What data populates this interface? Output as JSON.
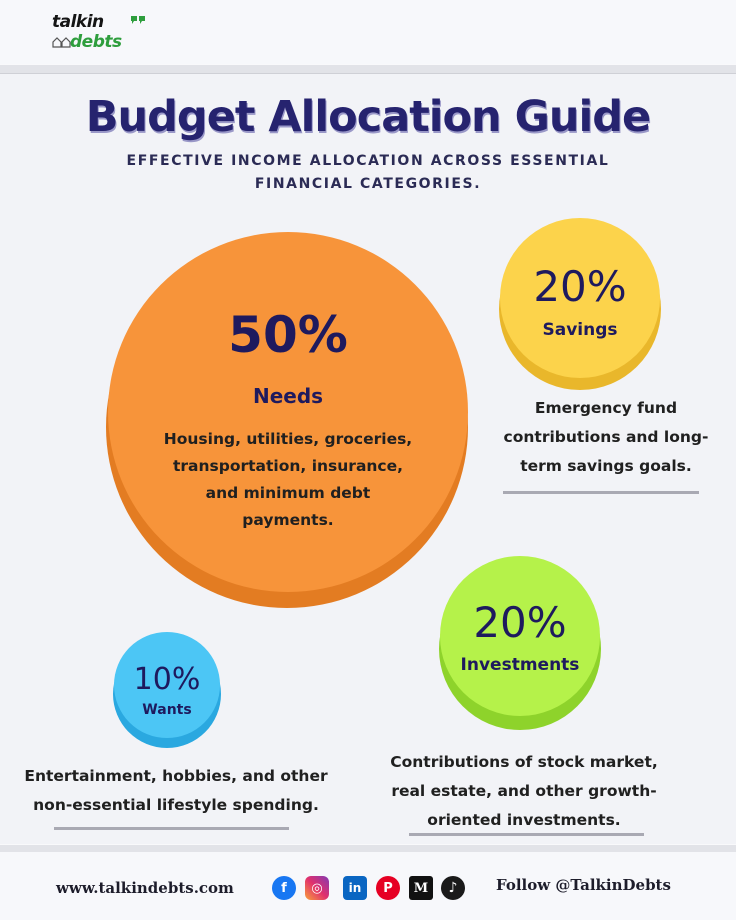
{
  "brand": {
    "line1": "talkin",
    "line2": "debts"
  },
  "title": "Budget Allocation Guide",
  "subtitle_line1": "EFFECTIVE INCOME ALLOCATION ACROSS ESSENTIAL",
  "subtitle_line2": "FINANCIAL CATEGORIES.",
  "needs": {
    "percent": "50%",
    "label": "Needs",
    "description": [
      "Housing, utilities, groceries,",
      "transportation, insurance,",
      "and minimum debt",
      "payments."
    ],
    "color": "#f7943a"
  },
  "savings": {
    "percent": "20%",
    "label": "Savings",
    "description": [
      "Emergency fund",
      "contributions and long-",
      "term savings goals."
    ],
    "color": "#fcd34b"
  },
  "investments": {
    "percent": "20%",
    "label": "Investments",
    "description": [
      "Contributions of stock market,",
      "real estate, and other growth-",
      "oriented investments."
    ],
    "color": "#b5f24a"
  },
  "wants": {
    "percent": "10%",
    "label": "Wants",
    "description": [
      "Entertainment, hobbies, and other",
      "non-essential lifestyle spending."
    ],
    "color": "#4cc6f5"
  },
  "footer": {
    "website": "www.talkindebts.com",
    "follow": "Follow @TalkinDebts",
    "social_icons": [
      "facebook-icon",
      "instagram-icon",
      "linkedin-icon",
      "pinterest-icon",
      "medium-icon",
      "tiktok-icon"
    ]
  }
}
